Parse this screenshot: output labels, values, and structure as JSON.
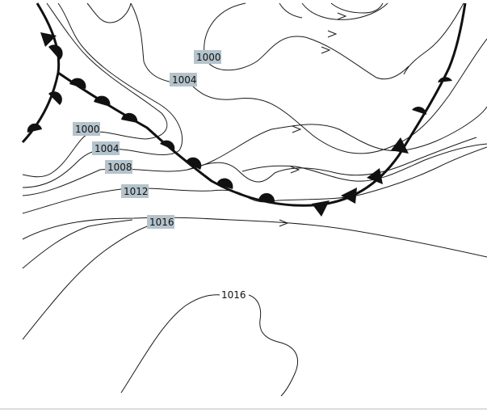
{
  "map": {
    "isobar_labels": {
      "upper_1000": "1000",
      "upper_1004": "1004",
      "left_1000": "1000",
      "left_1004": "1004",
      "left_1008": "1008",
      "left_1012": "1012",
      "left_1016": "1016",
      "lower_1016": "1016"
    },
    "colors": {
      "label_highlight": "#b4c3cc",
      "front": "#111111",
      "isobar": "#1a1a1a"
    },
    "symbols": {
      "front_main": "occluded-front-line",
      "front_branch": "warm-front-line",
      "wind_arrow": "wind-direction-arrow"
    }
  }
}
